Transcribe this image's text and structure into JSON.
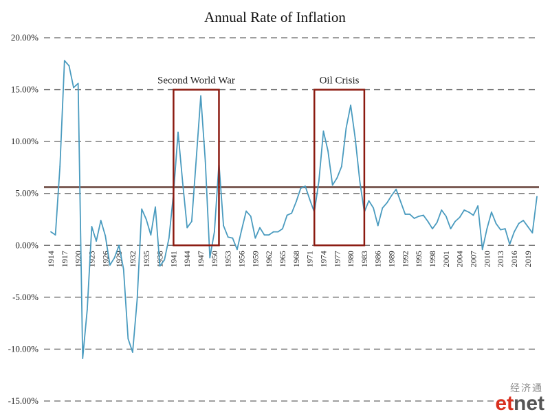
{
  "chart_data": {
    "type": "line",
    "title": "Annual Rate of Inflation",
    "xlabel": "",
    "ylabel": "",
    "ylim": [
      -15,
      20
    ],
    "y_ticks": [
      "20.00%",
      "15.00%",
      "10.00%",
      "5.00%",
      "0.00%",
      "-5.00%",
      "-10.00%",
      "-15.00%"
    ],
    "x_ticks": [
      "1914",
      "1917",
      "1920",
      "1923",
      "1926",
      "1929",
      "1932",
      "1935",
      "1938",
      "1941",
      "1944",
      "1947",
      "1950",
      "1953",
      "1956",
      "1959",
      "1962",
      "1965",
      "1968",
      "1971",
      "1974",
      "1977",
      "1980",
      "1983",
      "1986",
      "1989",
      "1992",
      "1995",
      "1998",
      "2001",
      "2004",
      "2007",
      "2010",
      "2013",
      "2016",
      "2019"
    ],
    "grid": "horizontal dashed",
    "series": [
      {
        "color": "#4a9bbf",
        "x": [
          1914,
          1915,
          1916,
          1917,
          1918,
          1919,
          1920,
          1921,
          1922,
          1923,
          1924,
          1925,
          1926,
          1927,
          1928,
          1929,
          1930,
          1931,
          1932,
          1933,
          1934,
          1935,
          1936,
          1937,
          1938,
          1939,
          1940,
          1941,
          1942,
          1943,
          1944,
          1945,
          1946,
          1947,
          1948,
          1949,
          1950,
          1951,
          1952,
          1953,
          1954,
          1955,
          1956,
          1957,
          1958,
          1959,
          1960,
          1961,
          1962,
          1963,
          1964,
          1965,
          1966,
          1967,
          1968,
          1969,
          1970,
          1971,
          1972,
          1973,
          1974,
          1975,
          1976,
          1977,
          1978,
          1979,
          1980,
          1981,
          1982,
          1983,
          1984,
          1985,
          1986,
          1987,
          1988,
          1989,
          1990,
          1991,
          1992,
          1993,
          1994,
          1995,
          1996,
          1997,
          1998,
          1999,
          2000,
          2001,
          2002,
          2003,
          2004,
          2005,
          2006,
          2007,
          2008,
          2009,
          2010,
          2011,
          2012,
          2013,
          2014,
          2015,
          2016,
          2017,
          2018,
          2019,
          2020,
          2021
        ],
        "y": [
          1.3,
          1.0,
          7.6,
          17.8,
          17.3,
          15.2,
          15.6,
          -10.9,
          -6.2,
          1.8,
          0.4,
          2.4,
          0.9,
          -1.9,
          -1.2,
          0.0,
          -2.3,
          -9.0,
          -10.3,
          -5.2,
          3.5,
          2.5,
          1.0,
          3.7,
          -2.0,
          -1.4,
          0.7,
          5.0,
          10.9,
          6.1,
          1.7,
          2.3,
          8.3,
          14.4,
          8.1,
          -1.2,
          1.3,
          7.9,
          1.9,
          0.8,
          0.7,
          -0.4,
          1.5,
          3.3,
          2.8,
          0.7,
          1.7,
          1.0,
          1.0,
          1.3,
          1.3,
          1.6,
          2.9,
          3.1,
          4.2,
          5.5,
          5.7,
          4.4,
          3.2,
          6.2,
          11.0,
          9.1,
          5.8,
          6.5,
          7.6,
          11.3,
          13.5,
          10.3,
          6.2,
          3.2,
          4.3,
          3.6,
          1.9,
          3.6,
          4.1,
          4.8,
          5.4,
          4.2,
          3.0,
          3.0,
          2.6,
          2.8,
          2.9,
          2.3,
          1.6,
          2.2,
          3.4,
          2.8,
          1.6,
          2.3,
          2.7,
          3.4,
          3.2,
          2.9,
          3.8,
          -0.4,
          1.6,
          3.2,
          2.1,
          1.5,
          1.6,
          0.1,
          1.3,
          2.1,
          2.4,
          1.8,
          1.2,
          4.7
        ]
      }
    ],
    "reference_line": {
      "y": 5.6,
      "color": "#7a5a52"
    },
    "annotations": [
      {
        "label": "Second World War",
        "x_start": 1941,
        "x_end": 1951,
        "y_low": 0,
        "y_high": 15,
        "color": "#8b1a10"
      },
      {
        "label": "Oil Crisis",
        "x_start": 1972,
        "x_end": 1983,
        "y_low": 0,
        "y_high": 15,
        "color": "#8b1a10"
      }
    ]
  },
  "watermark": {
    "chinese": "经济通",
    "brand_et": "et",
    "brand_net": "net"
  }
}
